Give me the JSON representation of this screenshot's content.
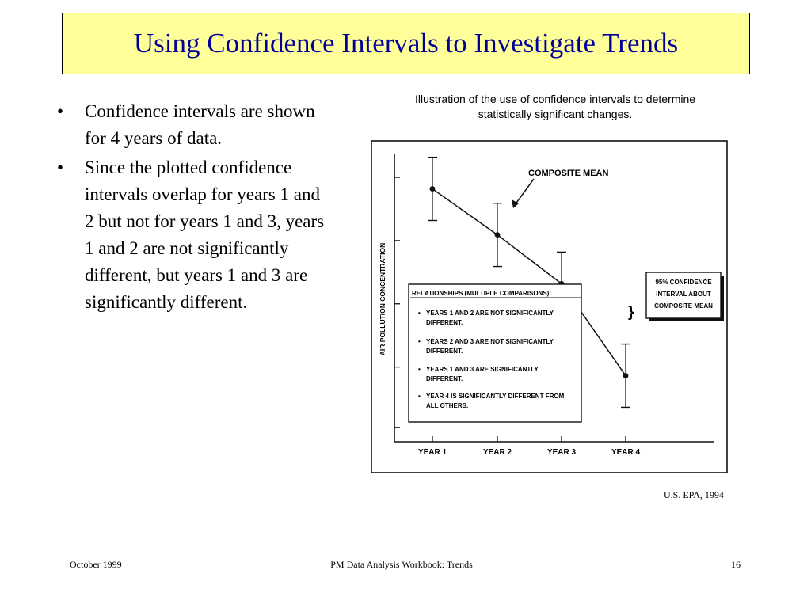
{
  "slide": {
    "title": "Using Confidence Intervals to Investigate Trends",
    "bullets": [
      "Confidence intervals are shown for 4 years of data.",
      "Since the plotted confidence intervals overlap for years 1 and 2 but not for years 1 and 3, years 1 and 2 are not significantly different, but years 1 and 3 are significantly different."
    ],
    "bullet_char": "•",
    "caption_line1": "Illustration of the use of confidence intervals to determine",
    "caption_line2": "statistically significant changes.",
    "source": "U.S. EPA, 1994"
  },
  "figure": {
    "y_axis_label": "AIR POLLUTION CONCENTRATION",
    "mean_label": "COMPOSITE MEAN",
    "ci_label_lines": [
      "95% CONFIDENCE",
      "INTERVAL ABOUT",
      "COMPOSITE MEAN"
    ],
    "relationships_title": "RELATIONSHIPS (MULTIPLE COMPARISONS):",
    "relationships": [
      [
        "YEARS 1 AND 2 ARE NOT SIGNIFICANTLY",
        "DIFFERENT."
      ],
      [
        "YEARS 2 AND 3 ARE NOT SIGNIFICANTLY",
        "DIFFERENT."
      ],
      [
        "YEARS 1 AND 3 ARE SIGNIFICANTLY",
        "DIFFERENT."
      ],
      [
        "YEAR 4 IS SIGNIFICANTLY DIFFERENT FROM",
        "ALL OTHERS."
      ]
    ],
    "bullet_mark": "•",
    "x_labels": [
      "YEAR 1",
      "YEAR 2",
      "YEAR 3",
      "YEAR 4"
    ],
    "means": [
      0.88,
      0.72,
      0.55,
      0.23
    ],
    "ci_low": [
      0.77,
      0.61,
      0.44,
      0.12
    ],
    "ci_high": [
      0.99,
      0.83,
      0.66,
      0.34
    ]
  },
  "footer": {
    "date": "October 1999",
    "center": "PM Data Analysis Workbook: Trends",
    "page": "16"
  }
}
